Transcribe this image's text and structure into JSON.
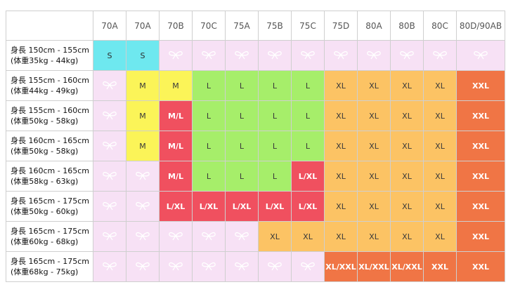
{
  "columns": [
    "70A",
    "70A",
    "70B",
    "70C",
    "75A",
    "75B",
    "75C",
    "75D",
    "80A",
    "80B",
    "80C",
    "80D/90AB"
  ],
  "rows": [
    {
      "label1": "身長 150cm - 155cm",
      "label2": "(体重35kg - 44kg)",
      "cells": [
        "S",
        "S",
        "",
        "",
        "",
        "",
        "",
        "",
        "",
        "",
        "",
        ""
      ]
    },
    {
      "label1": "身長 155cm - 160cm",
      "label2": "(体重44kg - 49kg)",
      "cells": [
        "",
        "M",
        "M",
        "L",
        "L",
        "L",
        "L",
        "XL",
        "XL",
        "XL",
        "XL",
        "XXL"
      ]
    },
    {
      "label1": "身長 155cm - 160cm",
      "label2": "(体重50kg - 58kg)",
      "cells": [
        "",
        "M",
        "M/L",
        "L",
        "L",
        "L",
        "L",
        "XL",
        "XL",
        "XL",
        "XL",
        "XXL"
      ]
    },
    {
      "label1": "身長 160cm - 165cm",
      "label2": "(体重50kg - 58kg)",
      "cells": [
        "",
        "M",
        "M/L",
        "L",
        "L",
        "L",
        "L",
        "XL",
        "XL",
        "XL",
        "XL",
        "XXL"
      ]
    },
    {
      "label1": "身長 160cm - 165cm",
      "label2": "(体重58kg - 63kg)",
      "cells": [
        "",
        "",
        "M/L",
        "L",
        "L",
        "L",
        "L/XL",
        "XL",
        "XL",
        "XL",
        "XL",
        "XXL"
      ]
    },
    {
      "label1": "身長 165cm - 175cm",
      "label2": "(体重50kg - 60kg)",
      "cells": [
        "",
        "",
        "L/XL",
        "L/XL",
        "L/XL",
        "L/XL",
        "L/XL",
        "XL",
        "XL",
        "XL",
        "XL",
        "XXL"
      ]
    },
    {
      "label1": "身長 165cm - 175cm",
      "label2": "(体重60kg - 68kg)",
      "cells": [
        "",
        "",
        "",
        "",
        "",
        "XL",
        "XL",
        "XL",
        "XL",
        "XL",
        "XL",
        "XXL"
      ]
    },
    {
      "label1": "身長 165cm - 175cm",
      "label2": "(体重68kg - 75kg)",
      "cells": [
        "",
        "",
        "",
        "",
        "",
        "",
        "",
        "XL/XXL",
        "XL/XXL",
        "XL/XXL",
        "XXL",
        "XXL"
      ]
    }
  ],
  "size_colors": {
    "S": "#6ee8ef",
    "M": "#fbf458",
    "M/L": "#f0505f",
    "L": "#a6ee6a",
    "L/XL": "#f0505f",
    "XL": "#fcc364",
    "XL/XXL": "#f07545",
    "XXL": "#f07545",
    "none": "#f7e1f5"
  },
  "empty_cell_icon": "bow-icon"
}
